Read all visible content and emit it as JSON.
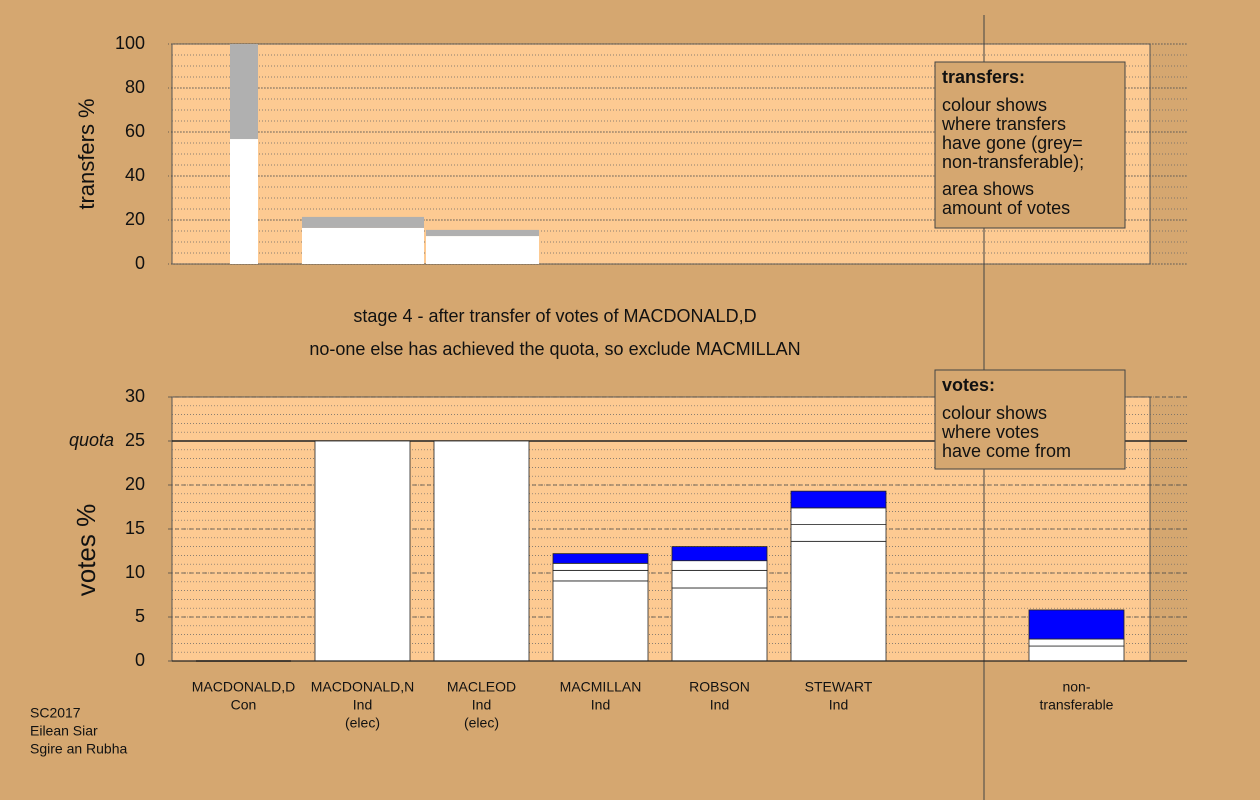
{
  "chart_data": [
    {
      "type": "bar",
      "stacked": true,
      "ylabel": "transfers %",
      "ylim": [
        0,
        100
      ],
      "yticks": [
        0,
        20,
        40,
        60,
        80,
        100
      ],
      "minor_grid": 5,
      "series": [
        {
          "color": "#ffffff",
          "values": [
            56.8,
            16.4,
            12.7
          ]
        },
        {
          "color": "#b0b0b0",
          "values": [
            43.2,
            5.0,
            2.8
          ]
        }
      ],
      "legend": {
        "title": "transfers:",
        "lines": [
          "colour shows",
          "where transfers",
          "have gone (grey=",
          "non-transferable);",
          "area shows",
          "amount of votes"
        ]
      }
    },
    {
      "type": "bar",
      "stacked": true,
      "ylabel": "votes %",
      "ylim": [
        0,
        30
      ],
      "yticks": [
        0,
        5,
        10,
        15,
        20,
        25,
        30
      ],
      "minor_grid": 1,
      "quota": {
        "value": 25,
        "label": "quota"
      },
      "categories": [
        [
          "MACDONALD,D",
          "Con"
        ],
        [
          "MACDONALD,N",
          "Ind",
          "(elec)"
        ],
        [
          "MACLEOD",
          "Ind",
          "(elec)"
        ],
        [
          "MACMILLAN",
          "Ind"
        ],
        [
          "ROBSON",
          "Ind"
        ],
        [
          "STEWART",
          "Ind"
        ],
        null,
        [
          "non-",
          "transferable"
        ]
      ],
      "series": [
        {
          "color": "#ffffff",
          "values": [
            0,
            25,
            25,
            9.1,
            8.3,
            13.6,
            null,
            null
          ]
        },
        {
          "color": "#ffffff",
          "values": [
            null,
            null,
            null,
            1.2,
            2.0,
            1.9,
            null,
            1.7
          ]
        },
        {
          "color": "#ffffff",
          "values": [
            null,
            null,
            null,
            0.8,
            1.1,
            1.9,
            null,
            0.8
          ]
        },
        {
          "color": "#0000ff",
          "values": [
            null,
            null,
            null,
            1.1,
            1.6,
            1.9,
            null,
            3.3
          ]
        }
      ],
      "legend": {
        "title": "votes:",
        "lines": [
          "colour shows",
          "where votes",
          "have come from"
        ]
      }
    }
  ],
  "notes": [
    "stage 4 - after transfer of votes of MACDONALD,D",
    "no-one else has achieved the quota, so exclude MACMILLAN"
  ],
  "footer": [
    "SC2017",
    "Eilean Siar",
    "Sgire an Rubha"
  ]
}
